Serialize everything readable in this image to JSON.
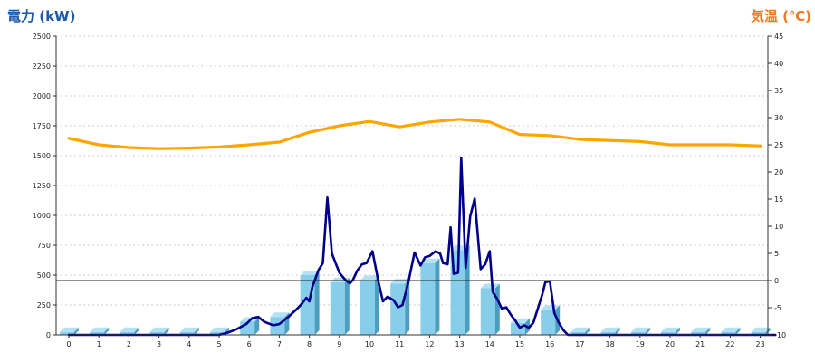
{
  "chart_data": {
    "type": "bar+line",
    "left_axis": {
      "title": "電力 (kW)",
      "min": 0,
      "max": 2500,
      "ticks": [
        0,
        250,
        500,
        750,
        1000,
        1250,
        1500,
        1750,
        2000,
        2250,
        2500
      ]
    },
    "right_axis": {
      "title": "気温 (℃)",
      "min": -10,
      "max": 45,
      "ticks": [
        -10,
        -5,
        0,
        5,
        10,
        15,
        20,
        25,
        30,
        35,
        40,
        45
      ]
    },
    "x_axis": {
      "categories": [
        "0",
        "1",
        "2",
        "3",
        "4",
        "5",
        "6",
        "7",
        "8",
        "9",
        "10",
        "11",
        "12",
        "13",
        "14",
        "15",
        "16",
        "17",
        "18",
        "19",
        "20",
        "21",
        "22",
        "23"
      ]
    },
    "grid": true,
    "reference_line": {
      "axis": "right",
      "value": 0
    },
    "series": [
      {
        "kind": "bar",
        "axis": "left",
        "color": "#87ceeb",
        "values": [
          25,
          25,
          25,
          25,
          25,
          25,
          110,
          150,
          500,
          440,
          460,
          430,
          600,
          710,
          390,
          100,
          210,
          25,
          25,
          25,
          25,
          25,
          25,
          25
        ]
      },
      {
        "kind": "line",
        "axis": "left",
        "color": "#00008b",
        "x": [
          0,
          0.5,
          1,
          1.5,
          2,
          2.5,
          3,
          3.5,
          4,
          4.5,
          5,
          5.3,
          5.6,
          5.9,
          6.1,
          6.3,
          6.5,
          6.8,
          7,
          7.3,
          7.6,
          7.75,
          7.9,
          8,
          8.1,
          8.3,
          8.45,
          8.6,
          8.75,
          9,
          9.2,
          9.35,
          9.45,
          9.6,
          9.75,
          9.9,
          10.1,
          10.3,
          10.45,
          10.6,
          10.8,
          10.95,
          11.1,
          11.3,
          11.5,
          11.7,
          11.85,
          12,
          12.2,
          12.35,
          12.45,
          12.6,
          12.7,
          12.8,
          12.95,
          13.05,
          13.2,
          13.35,
          13.5,
          13.7,
          13.85,
          14,
          14.1,
          14.25,
          14.4,
          14.55,
          14.7,
          14.85,
          15,
          15.15,
          15.3,
          15.45,
          15.6,
          15.75,
          15.85,
          16,
          16.15,
          16.3,
          16.45,
          16.6,
          16.75,
          17,
          18,
          19,
          20,
          21,
          22,
          23,
          23.5
        ],
        "y": [
          0,
          0,
          0,
          0,
          0,
          0,
          0,
          0,
          0,
          0,
          0,
          20,
          50,
          90,
          140,
          150,
          110,
          80,
          90,
          150,
          220,
          260,
          310,
          280,
          400,
          540,
          600,
          1150,
          680,
          520,
          460,
          430,
          460,
          540,
          590,
          600,
          700,
          440,
          280,
          320,
          290,
          230,
          250,
          450,
          690,
          580,
          650,
          660,
          700,
          680,
          600,
          590,
          900,
          510,
          520,
          1480,
          560,
          990,
          1140,
          550,
          590,
          700,
          360,
          300,
          220,
          230,
          170,
          120,
          60,
          80,
          60,
          100,
          220,
          340,
          440,
          450,
          180,
          100,
          40,
          0,
          0,
          0,
          0,
          0,
          0,
          0,
          0,
          0,
          0
        ]
      },
      {
        "kind": "line",
        "axis": "right",
        "color": "#ffa500",
        "x": [
          0,
          1,
          2,
          3,
          4,
          5,
          6,
          7,
          8,
          9,
          10,
          11,
          12,
          13,
          14,
          15,
          16,
          17,
          18,
          19,
          20,
          21,
          22,
          23
        ],
        "y": [
          26.2,
          25,
          24.5,
          24.3,
          24.4,
          24.6,
          25,
          25.5,
          27.3,
          28.5,
          29.3,
          28.3,
          29.2,
          29.7,
          29.2,
          26.9,
          26.7,
          26,
          25.8,
          25.6,
          25,
          25,
          25,
          24.8
        ]
      }
    ]
  }
}
